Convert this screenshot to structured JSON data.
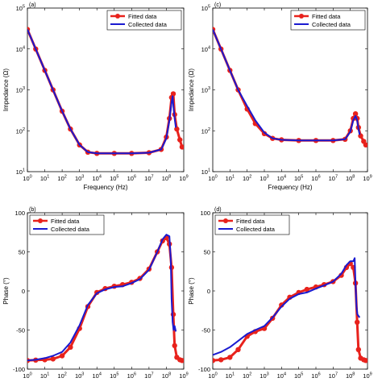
{
  "legend_labels": {
    "fitted": "Fitted data",
    "collected": "Collected data"
  },
  "colors": {
    "fitted": "#e8221c",
    "collected": "#1a1ad0",
    "axis": "#000000"
  },
  "chart_data": [
    {
      "type": "line",
      "panel_label": "(a)",
      "xlabel": "Frequency (Hz)",
      "ylabel": "Impedance (Ω)",
      "xscale": "log",
      "yscale": "log",
      "xlim": [
        1,
        1000000000
      ],
      "ylim": [
        10,
        100000
      ],
      "xticks": [
        1,
        10,
        100,
        1000,
        10000,
        100000,
        1000000,
        10000000,
        100000000,
        1000000000
      ],
      "xtick_labels": [
        "10^0",
        "10^1",
        "10^2",
        "10^3",
        "10^4",
        "10^5",
        "10^6",
        "10^7",
        "10^8",
        "10^9"
      ],
      "yticks": [
        10,
        100,
        1000,
        10000,
        100000
      ],
      "ytick_labels": [
        "10^1",
        "10^2",
        "10^3",
        "10^4",
        "10^5"
      ],
      "legend": "top-right",
      "series": [
        {
          "name": "Fitted data",
          "x": [
            1,
            3,
            10,
            30,
            100,
            300,
            1000,
            3000,
            10000,
            100000,
            1000000,
            10000000,
            50000000,
            100000000,
            150000000,
            200000000,
            250000000,
            300000000,
            400000000,
            600000000,
            800000000
          ],
          "y": [
            30000,
            10000,
            3000,
            1000,
            300,
            110,
            45,
            30,
            28,
            28,
            28,
            29,
            35,
            70,
            200,
            650,
            800,
            250,
            110,
            60,
            40
          ]
        },
        {
          "name": "Collected data",
          "x": [
            1,
            3,
            10,
            30,
            100,
            300,
            1000,
            3000,
            10000,
            100000,
            1000000,
            10000000,
            50000000,
            100000000,
            150000000,
            200000000,
            230000000,
            260000000,
            300000000,
            350000000
          ],
          "y": [
            30000,
            10000,
            3000,
            1000,
            300,
            110,
            45,
            30,
            28,
            28,
            28,
            29,
            35,
            65,
            180,
            500,
            700,
            350,
            200,
            120
          ]
        }
      ]
    },
    {
      "type": "line",
      "panel_label": "(c)",
      "xlabel": "Frequency (Hz)",
      "ylabel": "Impedance (Ω)",
      "xscale": "log",
      "yscale": "log",
      "xlim": [
        1,
        1000000000
      ],
      "ylim": [
        10,
        100000
      ],
      "xticks": [
        1,
        10,
        100,
        1000,
        10000,
        100000,
        1000000,
        10000000,
        100000000,
        1000000000
      ],
      "xtick_labels": [
        "10^0",
        "10^1",
        "10^2",
        "10^3",
        "10^4",
        "10^5",
        "10^6",
        "10^7",
        "10^8",
        "10^9"
      ],
      "yticks": [
        10,
        100,
        1000,
        10000,
        100000
      ],
      "ytick_labels": [
        "10^1",
        "10^2",
        "10^3",
        "10^4",
        "10^5"
      ],
      "legend": "top-right",
      "series": [
        {
          "name": "Fitted data",
          "x": [
            1,
            3,
            10,
            30,
            100,
            300,
            1000,
            3000,
            10000,
            100000,
            1000000,
            10000000,
            50000000,
            100000000,
            150000000,
            200000000,
            250000000,
            300000000,
            400000000,
            600000000,
            800000000
          ],
          "y": [
            30000,
            10000,
            3000,
            1000,
            340,
            150,
            85,
            65,
            60,
            58,
            58,
            58,
            62,
            100,
            200,
            260,
            200,
            120,
            75,
            55,
            45
          ]
        },
        {
          "name": "Collected data",
          "x": [
            1,
            3,
            10,
            30,
            100,
            300,
            1000,
            3000,
            10000,
            100000,
            1000000,
            10000000,
            50000000,
            100000000,
            150000000,
            200000000,
            250000000,
            300000000,
            350000000
          ],
          "y": [
            30000,
            10000,
            3000,
            1000,
            400,
            180,
            90,
            65,
            60,
            58,
            58,
            58,
            62,
            95,
            180,
            230,
            180,
            110,
            80
          ]
        }
      ]
    },
    {
      "type": "line",
      "panel_label": "(b)",
      "xlabel": "",
      "ylabel": "Phase (°)",
      "xscale": "log",
      "yscale": "linear",
      "xlim": [
        1,
        1000000000
      ],
      "ylim": [
        -100,
        100
      ],
      "xticks": [
        1,
        10,
        100,
        1000,
        10000,
        100000,
        1000000,
        10000000,
        100000000,
        1000000000
      ],
      "xtick_labels": [
        "10^0",
        "10^1",
        "10^2",
        "10^3",
        "10^4",
        "10^5",
        "10^6",
        "10^7",
        "10^8",
        "10^9"
      ],
      "yticks": [
        -100,
        -50,
        0,
        50,
        100
      ],
      "ytick_labels": [
        "-100",
        "-50",
        "0",
        "50",
        "100"
      ],
      "legend": "top-left",
      "series": [
        {
          "name": "Fitted data",
          "x": [
            1,
            3,
            10,
            30,
            100,
            300,
            1000,
            3000,
            10000,
            30000,
            100000,
            300000,
            1000000,
            3000000,
            10000000,
            30000000,
            60000000,
            100000000,
            150000000,
            200000000,
            250000000,
            300000000,
            400000000,
            600000000,
            800000000
          ],
          "y": [
            -89,
            -88.5,
            -88,
            -87,
            -83,
            -72,
            -48,
            -20,
            -2,
            3,
            6,
            8,
            11,
            16,
            28,
            50,
            64,
            68,
            60,
            30,
            -30,
            -70,
            -85,
            -88,
            -89
          ]
        },
        {
          "name": "Collected data",
          "x": [
            1,
            3,
            10,
            30,
            100,
            300,
            1000,
            3000,
            10000,
            30000,
            100000,
            300000,
            1000000,
            3000000,
            10000000,
            30000000,
            60000000,
            100000000,
            150000000,
            180000000,
            200000000,
            230000000,
            260000000,
            300000000,
            350000000
          ],
          "y": [
            -89,
            -88,
            -86,
            -83,
            -78,
            -66,
            -44,
            -18,
            -3,
            2,
            5,
            6,
            10,
            15,
            27,
            50,
            66,
            72,
            70,
            40,
            -10,
            -40,
            -50,
            -45,
            -52
          ]
        }
      ]
    },
    {
      "type": "line",
      "panel_label": "(d)",
      "xlabel": "",
      "ylabel": "Phase (°)",
      "xscale": "log",
      "yscale": "linear",
      "xlim": [
        1,
        1000000000
      ],
      "ylim": [
        -100,
        100
      ],
      "xticks": [
        1,
        10,
        100,
        1000,
        10000,
        100000,
        1000000,
        10000000,
        100000000,
        1000000000
      ],
      "xtick_labels": [
        "10^0",
        "10^1",
        "10^2",
        "10^3",
        "10^4",
        "10^5",
        "10^6",
        "10^7",
        "10^8",
        "10^9"
      ],
      "yticks": [
        -100,
        -50,
        0,
        50,
        100
      ],
      "ytick_labels": [
        "-100",
        "-50",
        "0",
        "50",
        "100"
      ],
      "legend": "top-left",
      "series": [
        {
          "name": "Fitted data",
          "x": [
            1,
            3,
            10,
            30,
            100,
            300,
            1000,
            3000,
            10000,
            30000,
            100000,
            300000,
            1000000,
            3000000,
            10000000,
            30000000,
            60000000,
            100000000,
            150000000,
            200000000,
            250000000,
            300000000,
            400000000,
            600000000,
            800000000
          ],
          "y": [
            -89,
            -88,
            -85,
            -75,
            -58,
            -52,
            -48,
            -35,
            -18,
            -8,
            -2,
            2,
            5,
            8,
            12,
            20,
            30,
            35,
            30,
            10,
            -40,
            -75,
            -86,
            -88,
            -89
          ]
        },
        {
          "name": "Collected data",
          "x": [
            1,
            3,
            10,
            30,
            100,
            300,
            1000,
            3000,
            10000,
            30000,
            100000,
            300000,
            1000000,
            3000000,
            10000000,
            30000000,
            60000000,
            100000000,
            150000000,
            180000000,
            200000000,
            230000000,
            260000000,
            300000000,
            350000000
          ],
          "y": [
            -82,
            -78,
            -72,
            -64,
            -55,
            -50,
            -45,
            -34,
            -20,
            -10,
            -4,
            -2,
            3,
            7,
            12,
            22,
            33,
            38,
            38,
            42,
            10,
            -20,
            -30,
            -32,
            -34
          ]
        }
      ]
    }
  ]
}
